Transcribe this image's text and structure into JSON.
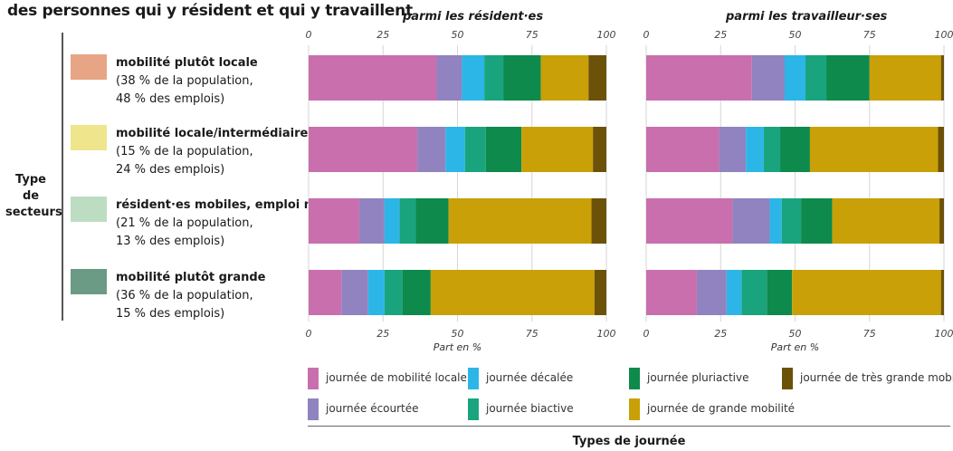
{
  "title": "des personnes qui y résident et qui y travaillent",
  "y_axis_label": "Type de secteurs",
  "x_axis_label": "Part en %",
  "bottom_label": "Types de journée",
  "panels": [
    "parmi les résident·es",
    "parmi les travailleur·ses"
  ],
  "ticks": [
    "0",
    "25",
    "50",
    "75",
    "100"
  ],
  "rows": [
    {
      "name": "mobilité plutôt locale",
      "line1": "(38 % de la population,",
      "line2": "48 % des emplois)",
      "color": "#E8A585"
    },
    {
      "name": "mobilité locale/intermédiaire",
      "line1": "(15 % de la population,",
      "line2": "24 % des emplois)",
      "color": "#EEE58C"
    },
    {
      "name": "résident·es mobiles, emploi mixte",
      "line1": "(21 % de la population,",
      "line2": "13 % des emplois)",
      "color": "#BCDDC2"
    },
    {
      "name": "mobilité plutôt grande",
      "line1": "(36 % de la population,",
      "line2": "15 % des emplois)",
      "color": "#6B9A85"
    }
  ],
  "legend": [
    {
      "label": "journée de mobilité locale",
      "color": "#C96FAD"
    },
    {
      "label": "journée écourtée",
      "color": "#9083C0"
    },
    {
      "label": "journée décalée",
      "color": "#2CB6E8"
    },
    {
      "label": "journée biactive",
      "color": "#1AA47E"
    },
    {
      "label": "journée pluriactive",
      "color": "#0E8A4C"
    },
    {
      "label": "journée de grande mobilité",
      "color": "#C9A007"
    },
    {
      "label": "journée de très grande mobilité",
      "color": "#6B5208"
    }
  ],
  "chart_data": {
    "type": "bar",
    "orientation": "horizontal",
    "stacked": true,
    "xlim": [
      0,
      100
    ],
    "xlabel": "Part en %",
    "categories": [
      "journée de mobilité locale",
      "journée écourtée",
      "journée décalée",
      "journée biactive",
      "journée pluriactive",
      "journée de grande mobilité",
      "journée de très grande mobilité"
    ],
    "panels": [
      {
        "name": "parmi les résident·es",
        "rows": [
          {
            "row": "mobilité plutôt locale",
            "values": [
              43,
              8.5,
              7.5,
              6.5,
              12.5,
              16,
              6
            ]
          },
          {
            "row": "mobilité locale/intermédiaire",
            "values": [
              36.5,
              9.5,
              6.5,
              7,
              12,
              24,
              4.5
            ]
          },
          {
            "row": "résident·es mobiles, emploi mixte",
            "values": [
              17,
              8.5,
              5,
              5.5,
              11,
              48,
              5
            ]
          },
          {
            "row": "mobilité plutôt grande",
            "values": [
              11,
              9,
              5.5,
              6,
              9.5,
              55,
              4
            ]
          }
        ]
      },
      {
        "name": "parmi les travailleur·ses",
        "rows": [
          {
            "row": "mobilité plutôt locale",
            "values": [
              35.5,
              11,
              7,
              7,
              14.5,
              24,
              1
            ]
          },
          {
            "row": "mobilité locale/intermédiaire",
            "values": [
              24.5,
              9,
              6,
              5.5,
              10,
              43,
              2
            ]
          },
          {
            "row": "résident·es mobiles, emploi mixte",
            "values": [
              29,
              12.5,
              4,
              6.5,
              10.5,
              36,
              1.5
            ]
          },
          {
            "row": "mobilité plutôt grande",
            "values": [
              17,
              10,
              5,
              8.5,
              8.5,
              50,
              1
            ]
          }
        ]
      }
    ]
  }
}
